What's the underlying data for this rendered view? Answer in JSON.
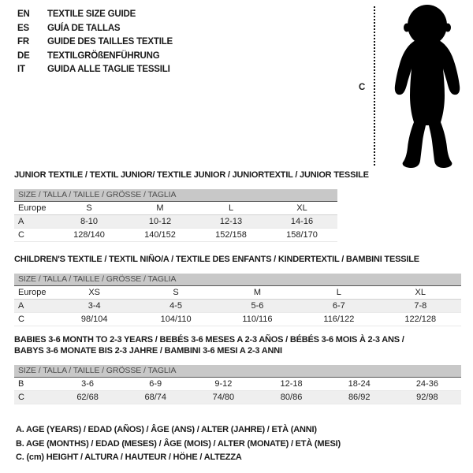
{
  "language_guide": [
    {
      "code": "EN",
      "label": "TEXTILE SIZE GUIDE"
    },
    {
      "code": "ES",
      "label": "GUÍA DE TALLAS"
    },
    {
      "code": "FR",
      "label": "GUIDE DES TAILLES TEXTILE"
    },
    {
      "code": "DE",
      "label": "TEXTILGRÖßENFÜHRUNG"
    },
    {
      "code": "IT",
      "label": "GUIDA ALLE TAGLIE TESSILI"
    }
  ],
  "figure": {
    "icon": "baby-silhouette",
    "measure_label": "C"
  },
  "colors": {
    "header_bar_bg": "#c8c8c8",
    "header_bar_text": "#4d4d4d",
    "shaded_row_bg": "#efefef",
    "silhouette": "#000000"
  },
  "tables": [
    {
      "title_lines": [
        "JUNIOR TEXTILE / TEXTIL JUNIOR/ TEXTILE JUNIOR / JUNIORTEXTIL / JUNIOR TESSILE"
      ],
      "size_bar": "SIZE / TALLA / TAILLE / GRÖSSE / TAGLIA",
      "header_row": {
        "label": "Europe",
        "cells": [
          "S",
          "M",
          "L",
          "XL"
        ]
      },
      "rows": [
        {
          "label": "A",
          "cells": [
            "8-10",
            "10-12",
            "12-13",
            "14-16"
          ],
          "shaded": true
        },
        {
          "label": "C",
          "cells": [
            "128/140",
            "140/152",
            "152/158",
            "158/170"
          ],
          "shaded": false
        }
      ]
    },
    {
      "title_lines": [
        "CHILDREN'S TEXTILE / TEXTIL NIÑO/A / TEXTILE DES ENFANTS / KINDERTEXTIL / BAMBINI TESSILE"
      ],
      "size_bar": "SIZE / TALLA / TAILLE / GRÖSSE / TAGLIA",
      "header_row": {
        "label": "Europe",
        "cells": [
          "XS",
          "S",
          "M",
          "L",
          "XL"
        ]
      },
      "rows": [
        {
          "label": "A",
          "cells": [
            "3-4",
            "4-5",
            "5-6",
            "6-7",
            "7-8"
          ],
          "shaded": true
        },
        {
          "label": "C",
          "cells": [
            "98/104",
            "104/110",
            "110/116",
            "116/122",
            "122/128"
          ],
          "shaded": false
        }
      ]
    },
    {
      "title_lines": [
        "BABIES 3-6 MONTH TO 2-3 YEARS / BEBÉS 3-6 MESES A 2-3 AÑOS / BÉBÉS 3-6 MOIS À 2-3 ANS /",
        "BABYS 3-6 MONATE BIS 2-3 JAHRE / BAMBINI 3-6 MESI A 2-3 ANNI"
      ],
      "size_bar": "SIZE / TALLA / TAILLE / GRÖSSE / TAGLIA",
      "header_row": null,
      "rows": [
        {
          "label": "B",
          "cells": [
            "3-6",
            "6-9",
            "9-12",
            "12-18",
            "18-24",
            "24-36"
          ],
          "shaded": false
        },
        {
          "label": "C",
          "cells": [
            "62/68",
            "68/74",
            "74/80",
            "80/86",
            "86/92",
            "92/98"
          ],
          "shaded": true
        }
      ]
    }
  ],
  "footnotes": [
    "A. AGE (YEARS) / EDAD (AÑOS) / ÂGE (ANS) / ALTER (JAHRE) / ETÀ (ANNI)",
    "B. AGE (MONTHS) / EDAD (MESES) / ÂGE (MOIS) / ALTER (MONATE) / ETÀ (MESI)",
    "C. (cm) HEIGHT / ALTURA / HAUTEUR / HÖHE / ALTEZZA"
  ]
}
